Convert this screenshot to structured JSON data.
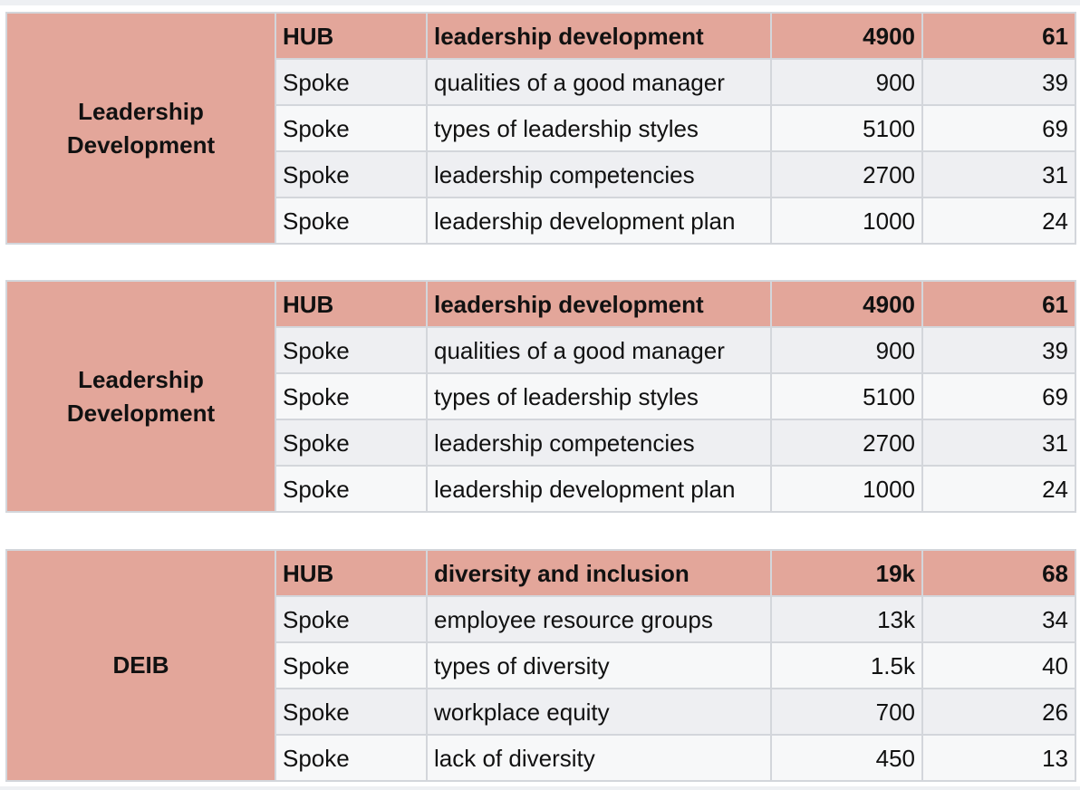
{
  "clusters": [
    {
      "group": "Leadership Development",
      "rows": [
        {
          "type": "HUB",
          "keyword": "leadership development",
          "volume": "4900",
          "difficulty": "61"
        },
        {
          "type": "Spoke",
          "keyword": "qualities of a good manager",
          "volume": "900",
          "difficulty": "39"
        },
        {
          "type": "Spoke",
          "keyword": "types of leadership styles",
          "volume": "5100",
          "difficulty": "69"
        },
        {
          "type": "Spoke",
          "keyword": "leadership competencies",
          "volume": "2700",
          "difficulty": "31"
        },
        {
          "type": "Spoke",
          "keyword": "leadership development plan",
          "volume": "1000",
          "difficulty": "24"
        }
      ]
    },
    {
      "group": "Leadership Development",
      "rows": [
        {
          "type": "HUB",
          "keyword": "leadership development",
          "volume": "4900",
          "difficulty": "61"
        },
        {
          "type": "Spoke",
          "keyword": "qualities of a good manager",
          "volume": "900",
          "difficulty": "39"
        },
        {
          "type": "Spoke",
          "keyword": "types of leadership styles",
          "volume": "5100",
          "difficulty": "69"
        },
        {
          "type": "Spoke",
          "keyword": "leadership competencies",
          "volume": "2700",
          "difficulty": "31"
        },
        {
          "type": "Spoke",
          "keyword": "leadership development plan",
          "volume": "1000",
          "difficulty": "24"
        }
      ]
    },
    {
      "group": "DEIB",
      "rows": [
        {
          "type": "HUB",
          "keyword": "diversity and inclusion",
          "volume": "19k",
          "difficulty": "68"
        },
        {
          "type": "Spoke",
          "keyword": "employee resource groups",
          "volume": "13k",
          "difficulty": "34"
        },
        {
          "type": "Spoke",
          "keyword": "types of diversity",
          "volume": "1.5k",
          "difficulty": "40"
        },
        {
          "type": "Spoke",
          "keyword": "workplace equity",
          "volume": "700",
          "difficulty": "26"
        },
        {
          "type": "Spoke",
          "keyword": "lack of diversity",
          "volume": "450",
          "difficulty": "13"
        }
      ]
    }
  ],
  "colors": {
    "hub_fill": "#e3a69a",
    "cell_fill": "#eeeff2",
    "grid": "#d3d6db"
  }
}
